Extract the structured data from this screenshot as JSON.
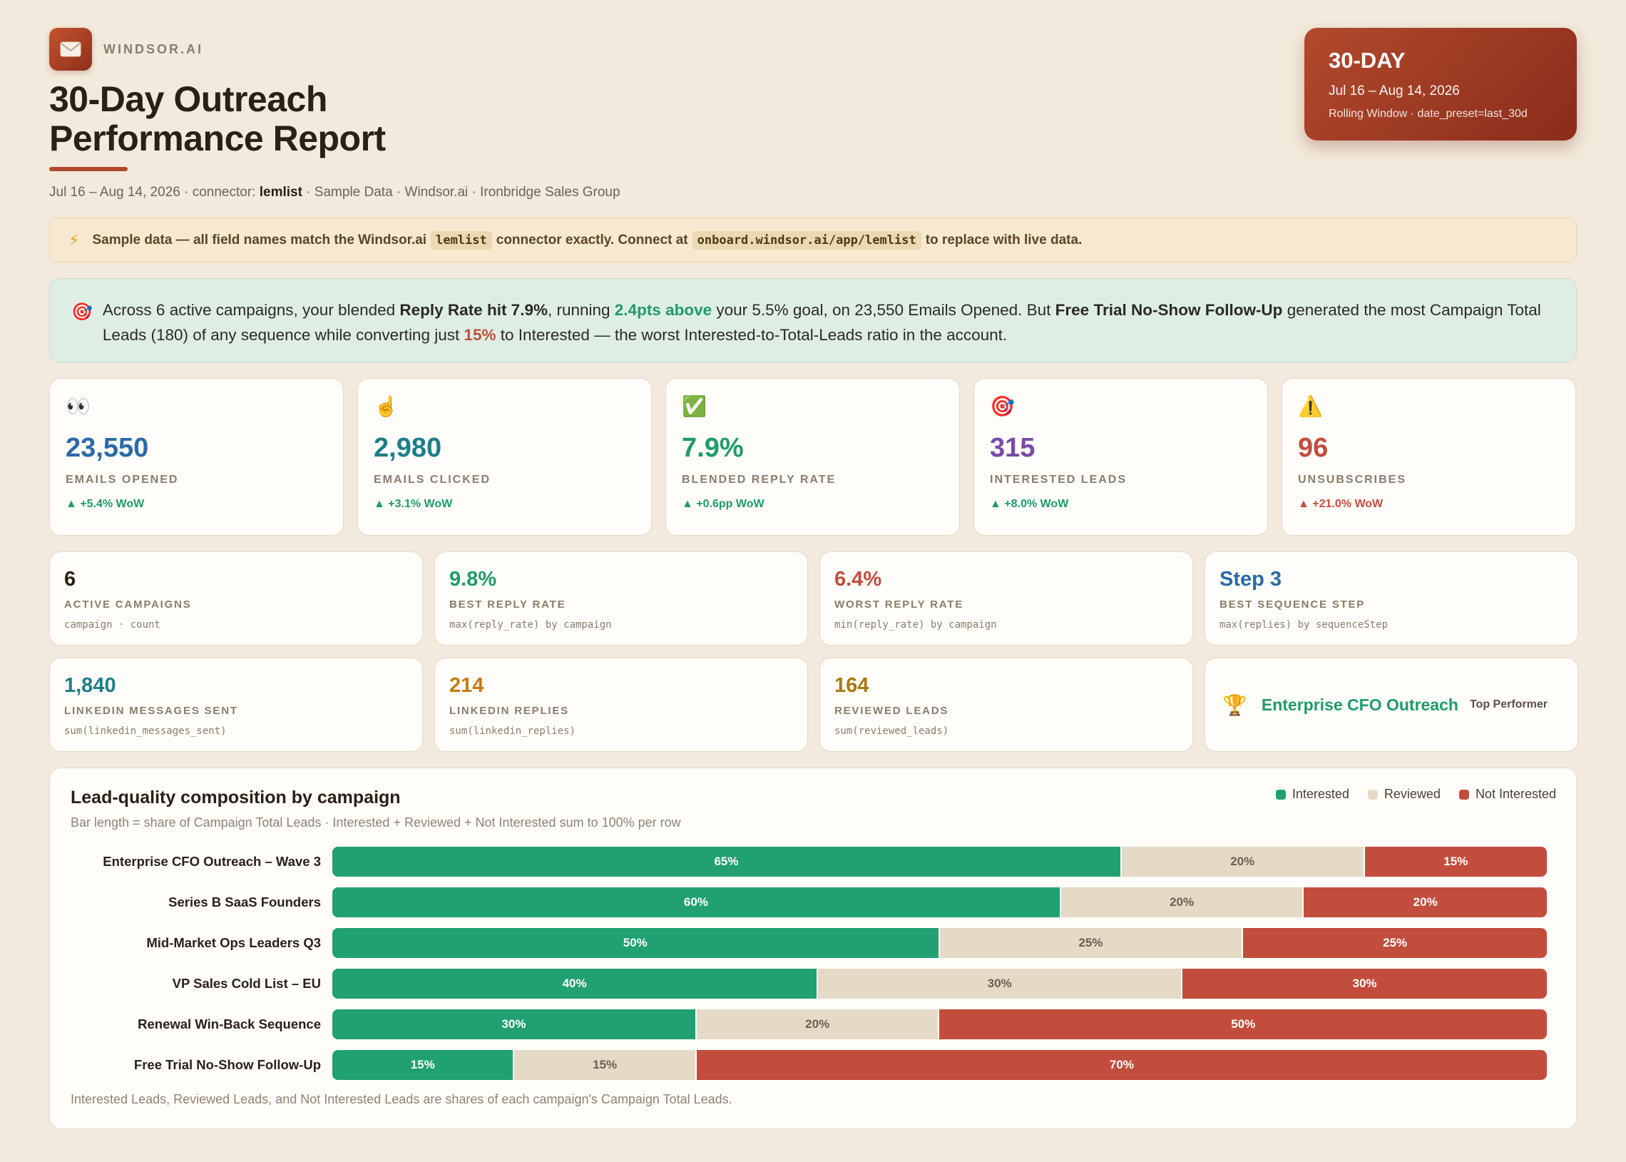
{
  "brand": {
    "name": "WINDSOR.AI",
    "logo_icon": "envelope-icon"
  },
  "header": {
    "title": "30-Day Outreach Performance Report",
    "subtitle_pre": "Jul 16 – Aug 14, 2026 · connector: ",
    "subtitle_connector": "lemlist",
    "subtitle_post": " · Sample Data · Windsor.ai · Ironbridge Sales Group"
  },
  "period": {
    "title": "30-DAY",
    "range": "Jul 16 – Aug 14, 2026",
    "note": "Rolling Window · date_preset=last_30d"
  },
  "notice": {
    "icon": "lightning-icon",
    "text1": "Sample data — all field names match the Windsor.ai",
    "chip1": "lemlist",
    "text2": "connector exactly. Connect at",
    "chip2": "onboard.windsor.ai/app/lemlist",
    "text3": "to replace with live data."
  },
  "insight": {
    "icon": "target-icon",
    "p1": "Across 6 active campaigns, your blended ",
    "b1": "Reply Rate hit 7.9%",
    "p2": ", running ",
    "g1": "2.4pts above",
    "p3": " your 5.5% goal, on 23,550 Emails Opened. But ",
    "b2": "Free Trial No-Show Follow-Up",
    "p4": " generated the most Campaign Total Leads (180) of any sequence while converting just ",
    "r1": "15%",
    "p5": " to Interested — the worst Interested-to-Total-Leads ratio in the account."
  },
  "kpis": [
    {
      "icon": "eyes-icon",
      "glyph": "👀",
      "value": "23,550",
      "label": "EMAILS OPENED",
      "delta": "▲ +5.4% WoW",
      "color": "#2a6aa8",
      "delta_color": "#1f9a6c"
    },
    {
      "icon": "pointer-icon",
      "glyph": "☝️",
      "value": "2,980",
      "label": "EMAILS CLICKED",
      "delta": "▲ +3.1% WoW",
      "color": "#1d7e8a",
      "delta_color": "#1f9a6c"
    },
    {
      "icon": "check-icon",
      "glyph": "✅",
      "value": "7.9%",
      "label": "BLENDED REPLY RATE",
      "delta": "▲ +0.6pp WoW",
      "color": "#1f9a6c",
      "delta_color": "#1f9a6c"
    },
    {
      "icon": "target-icon",
      "glyph": "🎯",
      "value": "315",
      "label": "INTERESTED LEADS",
      "delta": "▲ +8.0% WoW",
      "color": "#7a4aa8",
      "delta_color": "#1f9a6c"
    },
    {
      "icon": "warning-icon",
      "glyph": "⚠️",
      "value": "96",
      "label": "UNSUBSCRIBES",
      "delta": "▲ +21.0% WoW",
      "color": "#c24d3c",
      "delta_color": "#c24d3c"
    }
  ],
  "metrics": [
    {
      "value": "6",
      "label": "ACTIVE CAMPAIGNS",
      "formula": "campaign · count",
      "color": "#2b1f17"
    },
    {
      "value": "9.8%",
      "label": "BEST REPLY RATE",
      "formula": "max(reply_rate) by campaign",
      "color": "#1f9a6c"
    },
    {
      "value": "6.4%",
      "label": "WORST REPLY RATE",
      "formula": "min(reply_rate) by campaign",
      "color": "#c24d3c"
    },
    {
      "value": "Step 3",
      "label": "BEST SEQUENCE STEP",
      "formula": "max(replies) by sequenceStep",
      "color": "#2a6aa8"
    },
    {
      "value": "1,840",
      "label": "LINKEDIN MESSAGES SENT",
      "formula": "sum(linkedin_messages_sent)",
      "color": "#1d7e8a"
    },
    {
      "value": "214",
      "label": "LINKEDIN REPLIES",
      "formula": "sum(linkedin_replies)",
      "color": "#c77a12"
    },
    {
      "value": "164",
      "label": "REVIEWED LEADS",
      "formula": "sum(reviewed_leads)",
      "color": "#a87a12"
    }
  ],
  "top_performer": {
    "icon": "trophy-icon",
    "name": "Enterprise CFO Outreach",
    "tag": "Top Performer"
  },
  "chart": {
    "title": "Lead-quality composition by campaign",
    "subtitle": "Bar length = share of Campaign Total Leads · Interested + Reviewed + Not Interested sum to 100% per row",
    "footnote": "Interested Leads, Reviewed Leads, and Not Interested Leads are shares of each campaign's Campaign Total Leads.",
    "legend": [
      {
        "label": "Interested",
        "color": "#21a071"
      },
      {
        "label": "Reviewed",
        "color": "#e4dac6"
      },
      {
        "label": "Not Interested",
        "color": "#c24d3c"
      }
    ]
  },
  "chart_data": {
    "type": "bar",
    "orientation": "horizontal-stacked-100",
    "title": "Lead-quality composition by campaign",
    "categories": [
      "Enterprise CFO Outreach – Wave 3",
      "Series B SaaS Founders",
      "Mid-Market Ops Leaders Q3",
      "VP Sales Cold List – EU",
      "Renewal Win-Back Sequence",
      "Free Trial No-Show Follow-Up"
    ],
    "series": [
      {
        "name": "Interested",
        "values": [
          65,
          60,
          50,
          40,
          30,
          15
        ]
      },
      {
        "name": "Reviewed",
        "values": [
          20,
          20,
          25,
          30,
          20,
          15
        ]
      },
      {
        "name": "Not Interested",
        "values": [
          15,
          20,
          25,
          30,
          50,
          70
        ]
      }
    ],
    "unit": "%",
    "legend_position": "top-right"
  }
}
